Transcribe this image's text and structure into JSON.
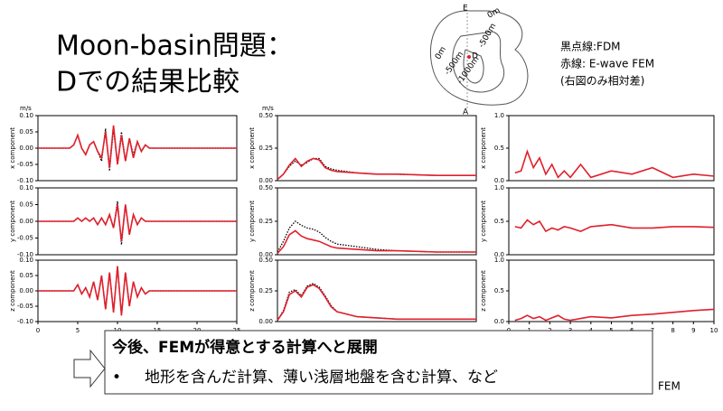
{
  "slide": {
    "title_lines": [
      "Moon-basin問題：",
      "Dでの結果比較"
    ],
    "legend_note": [
      "黒点線:FDM",
      "赤線: E-wave FEM",
      "(右図のみ相対差)"
    ],
    "units": [
      "m/s",
      "m/s"
    ],
    "footer_fragment": "FEM",
    "callout": {
      "heading": "今後、FEMが得意とする計算へと展開",
      "bullet": "•",
      "item": "地形を含んだ計算、薄い浅層地盤を含む計算、など"
    }
  },
  "diagram": {
    "labels": [
      "E",
      "0m",
      "-500m",
      "0m",
      "-500m",
      "-1000m",
      "D",
      "A"
    ]
  },
  "chart_data": [
    {
      "type": "line",
      "ylabel": "x component",
      "xlim": [
        0,
        25
      ],
      "ylim": [
        -0.1,
        0.1
      ],
      "yticks": [
        {
          "value": -0.1,
          "label": "-0.10"
        },
        {
          "value": -0.05,
          "label": "-0.05"
        },
        {
          "value": 0,
          "label": "0.00"
        },
        {
          "value": 0.05,
          "label": "0.05"
        },
        {
          "value": 0.1,
          "label": "0.10"
        }
      ],
      "x": [
        0,
        4,
        4.5,
        5,
        5.5,
        6,
        6.5,
        7,
        7.5,
        8,
        8.5,
        9,
        9.5,
        10,
        10.5,
        11,
        11.5,
        12,
        12.5,
        13,
        13.5,
        14,
        15,
        16,
        20,
        25
      ],
      "series": [
        {
          "color": "#000000",
          "style": "dotted",
          "values": [
            0,
            0,
            0.01,
            0.04,
            0,
            -0.02,
            0.01,
            0.02,
            -0.01,
            -0.04,
            0.06,
            -0.07,
            0.06,
            -0.05,
            0.05,
            -0.04,
            0.03,
            -0.02,
            0.02,
            -0.01,
            0.01,
            0,
            0,
            0,
            0,
            0
          ]
        },
        {
          "color": "#e0202c",
          "style": "solid",
          "values": [
            0,
            0,
            0.01,
            0.04,
            0,
            -0.02,
            0.01,
            0.02,
            -0.01,
            -0.03,
            0.05,
            -0.06,
            0.07,
            -0.05,
            0.04,
            -0.04,
            0.03,
            -0.03,
            0.02,
            -0.01,
            0.01,
            0,
            0,
            0,
            0,
            0
          ]
        }
      ]
    },
    {
      "type": "line",
      "ylabel": "y component",
      "xlim": [
        0,
        25
      ],
      "ylim": [
        -0.1,
        0.1
      ],
      "yticks": [
        {
          "value": -0.1,
          "label": "-0.10"
        },
        {
          "value": -0.05,
          "label": "-0.05"
        },
        {
          "value": 0,
          "label": "0.00"
        },
        {
          "value": 0.05,
          "label": "0.05"
        },
        {
          "value": 0.1,
          "label": "0.10"
        }
      ],
      "x": [
        0,
        4,
        4.5,
        5,
        5.5,
        6,
        6.5,
        7,
        7.5,
        8,
        8.5,
        9,
        9.5,
        10,
        10.5,
        11,
        11.5,
        12,
        12.5,
        13,
        13.5,
        14,
        15,
        16,
        20,
        25
      ],
      "series": [
        {
          "color": "#000000",
          "style": "dotted",
          "values": [
            0,
            0,
            0,
            0.01,
            0,
            0.01,
            0,
            0.01,
            -0.01,
            0.01,
            -0.01,
            0.02,
            -0.02,
            0.06,
            -0.07,
            0.05,
            -0.04,
            0.02,
            -0.01,
            0.01,
            0,
            0,
            0,
            0,
            0,
            0
          ]
        },
        {
          "color": "#e0202c",
          "style": "solid",
          "values": [
            0,
            0,
            0,
            0.01,
            0,
            0.01,
            0,
            0.01,
            -0.01,
            0.01,
            -0.01,
            0.02,
            -0.02,
            0.05,
            -0.06,
            0.05,
            -0.04,
            0.02,
            -0.01,
            0.01,
            0,
            0,
            0,
            0,
            0,
            0
          ]
        }
      ]
    },
    {
      "type": "line",
      "ylabel": "z component",
      "xlim": [
        0,
        25
      ],
      "ylim": [
        -0.1,
        0.1
      ],
      "yticks": [
        {
          "value": -0.1,
          "label": "-0.10"
        },
        {
          "value": -0.05,
          "label": "-0.05"
        },
        {
          "value": 0,
          "label": "0.00"
        },
        {
          "value": 0.05,
          "label": "0.05"
        },
        {
          "value": 0.1,
          "label": "0.10"
        }
      ],
      "xticks": [
        0,
        5,
        10,
        15,
        20,
        25
      ],
      "x": [
        0,
        4,
        4.5,
        5,
        5.5,
        6,
        6.5,
        7,
        7.5,
        8,
        8.5,
        9,
        9.5,
        10,
        10.5,
        11,
        11.5,
        12,
        12.5,
        13,
        13.5,
        14,
        15,
        16,
        20,
        25
      ],
      "series": [
        {
          "color": "#000000",
          "style": "dotted",
          "values": [
            0,
            0,
            0,
            0.02,
            -0.01,
            0.01,
            -0.02,
            0.03,
            -0.03,
            0.05,
            -0.06,
            0.06,
            -0.07,
            0.08,
            -0.08,
            0.06,
            -0.05,
            0.03,
            -0.02,
            0.01,
            -0.01,
            0,
            0,
            0,
            0,
            0
          ]
        },
        {
          "color": "#e0202c",
          "style": "solid",
          "values": [
            0,
            0,
            0,
            0.02,
            -0.01,
            0.01,
            -0.02,
            0.03,
            -0.03,
            0.05,
            -0.06,
            0.06,
            -0.07,
            0.08,
            -0.08,
            0.06,
            -0.05,
            0.03,
            -0.02,
            0.01,
            -0.01,
            0,
            0,
            0,
            0,
            0
          ]
        }
      ]
    },
    {
      "type": "line",
      "ylabel": "x component",
      "xlim": [
        0,
        10
      ],
      "ylim": [
        0,
        0.5
      ],
      "yticks": [
        {
          "value": 0,
          "label": "0.00"
        },
        {
          "value": 0.25,
          "label": "0.25"
        },
        {
          "value": 0.5,
          "label": "0.50"
        }
      ],
      "x": [
        0,
        0.3,
        0.6,
        0.9,
        1.2,
        1.5,
        1.8,
        2.1,
        2.4,
        2.7,
        3,
        4,
        5,
        6,
        8,
        10
      ],
      "series": [
        {
          "color": "#000000",
          "style": "dotted",
          "values": [
            0.01,
            0.05,
            0.11,
            0.15,
            0.12,
            0.14,
            0.17,
            0.17,
            0.11,
            0.09,
            0.08,
            0.06,
            0.05,
            0.05,
            0.04,
            0.04
          ]
        },
        {
          "color": "#e0202c",
          "style": "solid",
          "values": [
            0.01,
            0.05,
            0.12,
            0.17,
            0.11,
            0.15,
            0.17,
            0.16,
            0.1,
            0.08,
            0.07,
            0.06,
            0.05,
            0.05,
            0.04,
            0.04
          ]
        }
      ]
    },
    {
      "type": "line",
      "ylabel": "y component",
      "xlim": [
        0,
        10
      ],
      "ylim": [
        0,
        0.5
      ],
      "yticks": [
        {
          "value": 0,
          "label": "0.00"
        },
        {
          "value": 0.25,
          "label": "0.25"
        },
        {
          "value": 0.5,
          "label": "0.50"
        }
      ],
      "x": [
        0,
        0.3,
        0.6,
        0.9,
        1.2,
        1.5,
        1.8,
        2.1,
        2.4,
        2.7,
        3,
        4,
        5,
        6,
        8,
        10
      ],
      "series": [
        {
          "color": "#000000",
          "style": "dotted",
          "values": [
            0.02,
            0.1,
            0.2,
            0.25,
            0.22,
            0.2,
            0.19,
            0.17,
            0.13,
            0.1,
            0.08,
            0.06,
            0.04,
            0.03,
            0.02,
            0.02
          ]
        },
        {
          "color": "#e0202c",
          "style": "solid",
          "values": [
            0.01,
            0.06,
            0.15,
            0.18,
            0.14,
            0.12,
            0.11,
            0.1,
            0.08,
            0.06,
            0.05,
            0.04,
            0.03,
            0.03,
            0.02,
            0.02
          ]
        }
      ]
    },
    {
      "type": "line",
      "ylabel": "z component",
      "xlim": [
        0,
        10
      ],
      "ylim": [
        0,
        0.5
      ],
      "yticks": [
        {
          "value": 0,
          "label": "0.00"
        },
        {
          "value": 0.25,
          "label": "0.25"
        },
        {
          "value": 0.5,
          "label": "0.50"
        }
      ],
      "x": [
        0,
        0.3,
        0.6,
        0.9,
        1.2,
        1.5,
        1.8,
        2.1,
        2.4,
        2.7,
        3,
        4,
        5,
        6,
        8,
        10
      ],
      "series": [
        {
          "color": "#000000",
          "style": "dotted",
          "values": [
            0.01,
            0.09,
            0.24,
            0.26,
            0.21,
            0.29,
            0.31,
            0.28,
            0.21,
            0.13,
            0.08,
            0.04,
            0.03,
            0.02,
            0.02,
            0.02
          ]
        },
        {
          "color": "#e0202c",
          "style": "solid",
          "values": [
            0.01,
            0.08,
            0.22,
            0.25,
            0.2,
            0.28,
            0.3,
            0.27,
            0.2,
            0.12,
            0.08,
            0.04,
            0.03,
            0.02,
            0.02,
            0.02
          ]
        }
      ]
    },
    {
      "type": "line",
      "ylabel": "x component",
      "xlim": [
        0,
        10
      ],
      "ylim": [
        0,
        1
      ],
      "yticks": [
        {
          "value": 0,
          "label": "0.0"
        },
        {
          "value": 0.5,
          "label": "0.5"
        },
        {
          "value": 1,
          "label": "1.0"
        }
      ],
      "x": [
        0.3,
        0.6,
        0.9,
        1.2,
        1.5,
        1.8,
        2.1,
        2.4,
        2.7,
        3,
        3.5,
        4,
        5,
        6,
        7,
        8,
        9,
        10
      ],
      "series": [
        {
          "color": "#e0202c",
          "style": "solid",
          "values": [
            0.12,
            0.15,
            0.45,
            0.2,
            0.35,
            0.1,
            0.25,
            0.05,
            0.15,
            0.05,
            0.25,
            0.05,
            0.15,
            0.1,
            0.2,
            0.05,
            0.1,
            0.07
          ]
        }
      ]
    },
    {
      "type": "line",
      "ylabel": "y component",
      "xlim": [
        0,
        10
      ],
      "ylim": [
        0,
        1
      ],
      "yticks": [
        {
          "value": 0,
          "label": "0.0"
        },
        {
          "value": 0.5,
          "label": "0.5"
        },
        {
          "value": 1,
          "label": "1.0"
        }
      ],
      "x": [
        0.3,
        0.6,
        0.9,
        1.2,
        1.5,
        1.8,
        2.1,
        2.4,
        2.7,
        3,
        3.5,
        4,
        5,
        6,
        7,
        8,
        9,
        10
      ],
      "series": [
        {
          "color": "#e0202c",
          "style": "solid",
          "values": [
            0.42,
            0.4,
            0.52,
            0.45,
            0.5,
            0.35,
            0.4,
            0.37,
            0.42,
            0.4,
            0.35,
            0.42,
            0.45,
            0.4,
            0.4,
            0.42,
            0.42,
            0.41
          ]
        }
      ]
    },
    {
      "type": "line",
      "ylabel": "z component",
      "xlim": [
        0,
        10
      ],
      "ylim": [
        0,
        1
      ],
      "yticks": [
        {
          "value": 0,
          "label": "0.0"
        },
        {
          "value": 0.5,
          "label": "0.5"
        },
        {
          "value": 1,
          "label": "1.0"
        }
      ],
      "xticks": [
        0,
        1,
        2,
        3,
        4,
        5,
        6,
        7,
        8,
        9,
        10
      ],
      "x": [
        0.3,
        0.6,
        0.9,
        1.2,
        1.5,
        1.8,
        2.1,
        2.4,
        2.7,
        3,
        3.5,
        4,
        5,
        6,
        7,
        8,
        9,
        10
      ],
      "series": [
        {
          "color": "#e0202c",
          "style": "solid",
          "values": [
            0.02,
            0.05,
            0.1,
            0.05,
            0.08,
            0.02,
            0.06,
            0.1,
            0.04,
            0.02,
            0.05,
            0.08,
            0.06,
            0.1,
            0.12,
            0.15,
            0.18,
            0.2
          ]
        }
      ]
    }
  ]
}
